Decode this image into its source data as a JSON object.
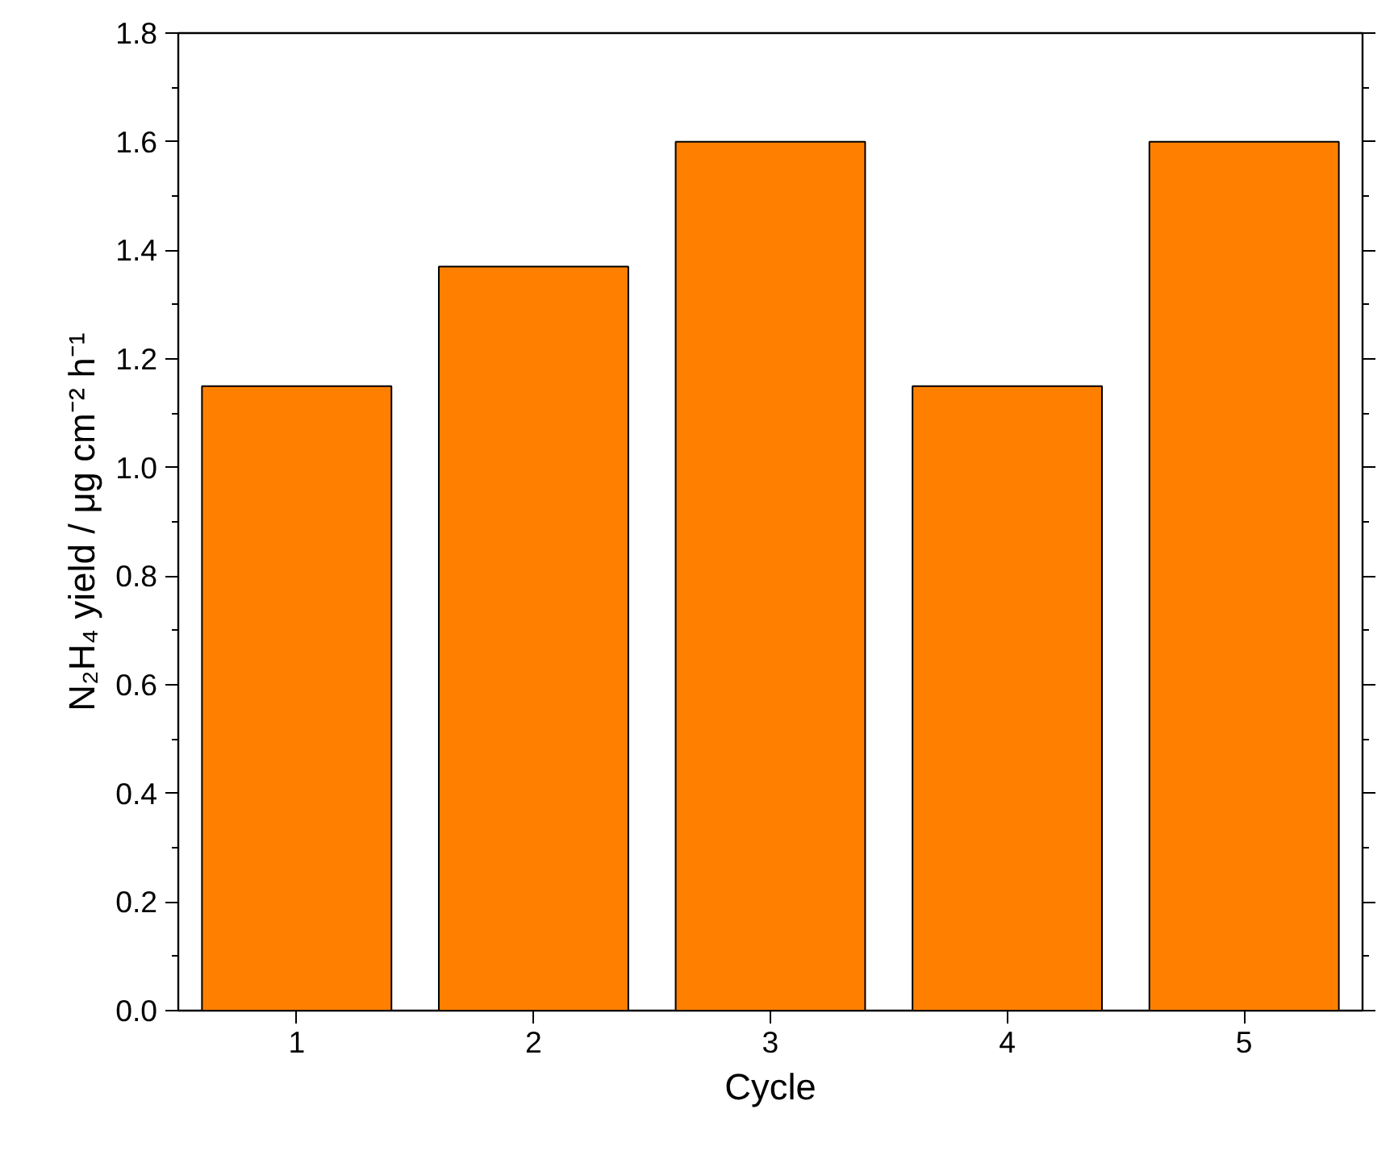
{
  "chart_data": {
    "type": "bar",
    "xlabel": "Cycle",
    "ylabel": "N₂H₄ yield / μg cm⁻² h⁻¹",
    "categories": [
      "1",
      "2",
      "3",
      "4",
      "5"
    ],
    "values": [
      1.15,
      1.37,
      1.6,
      1.15,
      1.6
    ],
    "color": "#ff8000",
    "ylim": [
      0,
      1.8
    ],
    "yticks": [
      {
        "value": 0,
        "label": "0.0"
      },
      {
        "value": 0.2,
        "label": "0.2"
      },
      {
        "value": 0.4,
        "label": "0.4"
      },
      {
        "value": 0.6,
        "label": "0.6"
      },
      {
        "value": 0.8,
        "label": "0.8"
      },
      {
        "value": 1.0,
        "label": "1.0"
      },
      {
        "value": 1.2,
        "label": "1.2"
      },
      {
        "value": 1.4,
        "label": "1.4"
      },
      {
        "value": 1.6,
        "label": "1.6"
      },
      {
        "value": 1.8,
        "label": "1.8"
      }
    ],
    "grid": false
  }
}
